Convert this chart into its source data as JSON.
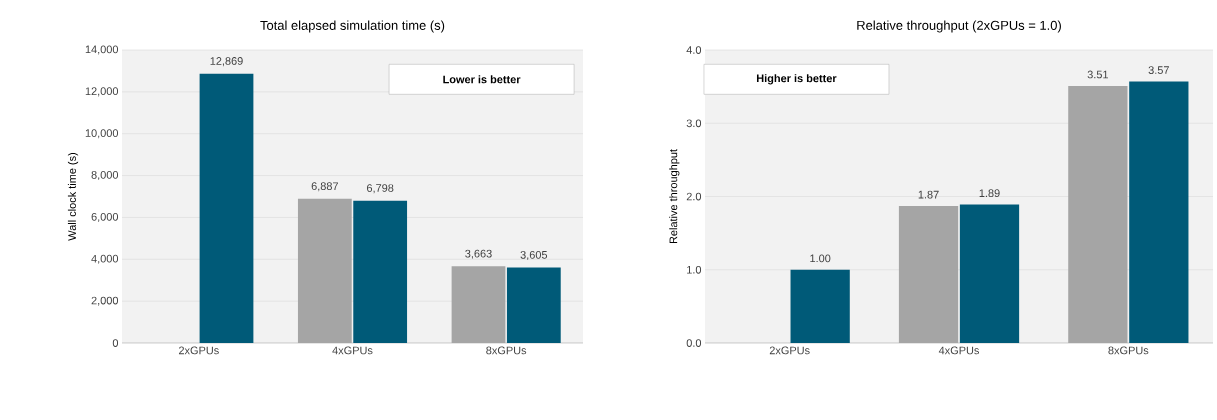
{
  "chart_data": [
    {
      "type": "bar",
      "title": "Total elapsed simulation time (s)",
      "ylabel": "Wall clock time (s)",
      "categories": [
        "2xGPUs",
        "4xGPUs",
        "8xGPUs"
      ],
      "series": [
        {
          "color": "#a5a5a5",
          "values": [
            null,
            6887,
            3663
          ],
          "value_labels": [
            null,
            "6,887",
            "3,663"
          ]
        },
        {
          "color": "#005a78",
          "values": [
            12869,
            6798,
            3605
          ],
          "value_labels": [
            "12,869",
            "6,798",
            "3,605"
          ]
        }
      ],
      "ylim": [
        0,
        14000
      ],
      "yticks": [
        0,
        {
          "value": 2000,
          "label": "2,000"
        },
        {
          "value": 4000,
          "label": "4,000"
        },
        {
          "value": 6000,
          "label": "6,000"
        },
        {
          "value": 8000,
          "label": "8,000"
        },
        {
          "value": 10000,
          "label": "10,000"
        },
        {
          "value": 12000,
          "label": "12,000"
        },
        {
          "value": 14000,
          "label": "14,000"
        }
      ],
      "grid": "y",
      "annotations": [
        "Lower is better"
      ]
    },
    {
      "type": "bar",
      "title": "Relative throughput (2xGPUs = 1.0)",
      "ylabel": "Relative throughput",
      "categories": [
        "2xGPUs",
        "4xGPUs",
        "8xGPUs"
      ],
      "series": [
        {
          "color": "#a5a5a5",
          "values": [
            null,
            1.87,
            3.51
          ],
          "value_labels": [
            null,
            "1.87",
            "3.51"
          ]
        },
        {
          "color": "#005a78",
          "values": [
            1.0,
            1.89,
            3.57
          ],
          "value_labels": [
            "1.00",
            "1.89",
            "3.57"
          ]
        }
      ],
      "ylim": [
        0,
        4
      ],
      "yticks": [
        {
          "value": 0,
          "label": "0.0"
        },
        {
          "value": 1,
          "label": "1.0"
        },
        {
          "value": 2,
          "label": "2.0"
        },
        {
          "value": 3,
          "label": "3.0"
        },
        {
          "value": 4,
          "label": "4.0"
        }
      ],
      "grid": "y",
      "annotations": [
        "Higher is better"
      ]
    }
  ]
}
